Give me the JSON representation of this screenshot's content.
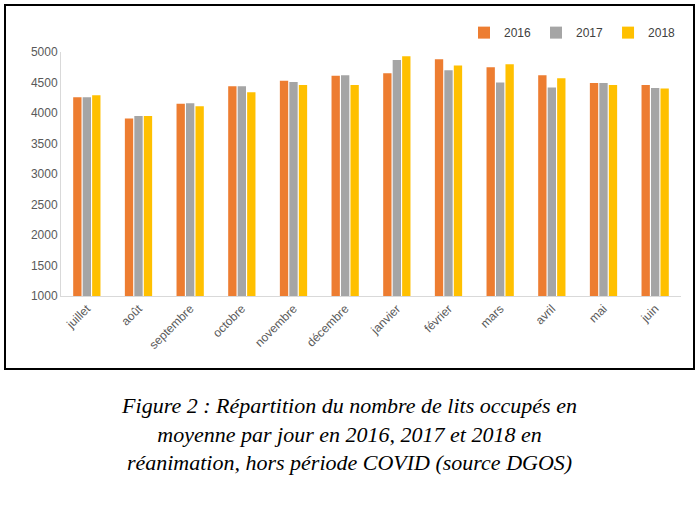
{
  "chart_data": {
    "type": "bar",
    "categories": [
      "juillet",
      "août",
      "septembre",
      "octobre",
      "novembre",
      "décembre",
      "janvier",
      "février",
      "mars",
      "avril",
      "mai",
      "juin"
    ],
    "series": [
      {
        "name": "2016",
        "color": "#ED7D31",
        "values": [
          4260,
          3910,
          4150,
          4440,
          4530,
          4610,
          4650,
          4880,
          4750,
          4620,
          4490,
          4460
        ]
      },
      {
        "name": "2017",
        "color": "#A5A5A5",
        "values": [
          4260,
          3950,
          4160,
          4440,
          4510,
          4620,
          4870,
          4700,
          4500,
          4420,
          4490,
          4410
        ]
      },
      {
        "name": "2018",
        "color": "#FFC000",
        "values": [
          4290,
          3950,
          4110,
          4340,
          4460,
          4460,
          4930,
          4780,
          4800,
          4570,
          4460,
          4400
        ]
      }
    ],
    "ylim": [
      1000,
      5000
    ],
    "yticks": [
      1000,
      1500,
      2000,
      2500,
      3000,
      3500,
      4000,
      4500,
      5000
    ],
    "grid": false,
    "legend": "top right"
  },
  "caption": "Figure 2 : Répartition du nombre de lits occupés en moyenne par jour en 2016, 2017 et 2018 en réanimation, hors période COVID (source DGOS)"
}
